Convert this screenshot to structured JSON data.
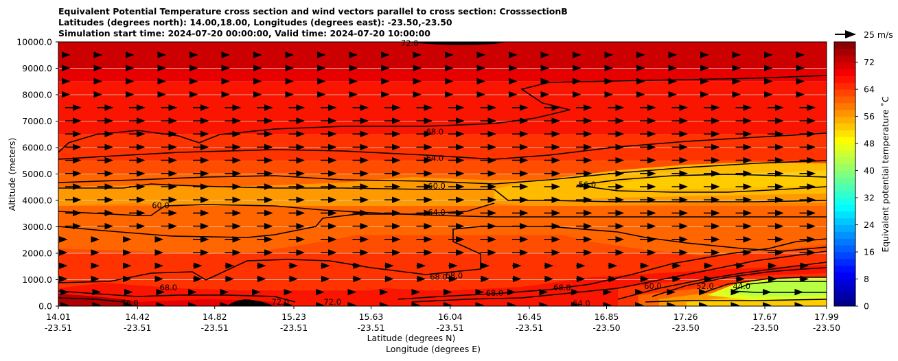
{
  "title_lines": [
    "Equivalent Potential Temperature cross section and wind vectors parallel to cross section: CrosssectionB",
    "Latitudes (degrees north): 14.00,18.00, Longitudes (degrees east): -23.50,-23.50",
    "Simulation start time: 2024-07-20 00:00:00, Valid time: 2024-07-20 10:00:00"
  ],
  "chart_data": {
    "type": "heatmap",
    "subtype": "filled contour cross section with wind vectors",
    "title": "Equivalent Potential Temperature cross section and wind vectors parallel to cross section: CrosssectionB",
    "ylabel": "Altitude (meters)",
    "xlabel_lines": [
      "Latitude (degrees N)",
      "Longitude (degrees E)"
    ],
    "ylim": [
      0,
      10000
    ],
    "yticks": [
      "0.0",
      "1000.0",
      "2000.0",
      "3000.0",
      "4000.0",
      "5000.0",
      "6000.0",
      "7000.0",
      "8000.0",
      "9000.0",
      "10000.0"
    ],
    "xticks": [
      {
        "lat": "14.01",
        "lon": "-23.51"
      },
      {
        "lat": "14.42",
        "lon": "-23.51"
      },
      {
        "lat": "14.82",
        "lon": "-23.51"
      },
      {
        "lat": "15.23",
        "lon": "-23.51"
      },
      {
        "lat": "15.63",
        "lon": "-23.51"
      },
      {
        "lat": "16.04",
        "lon": "-23.51"
      },
      {
        "lat": "16.45",
        "lon": "-23.51"
      },
      {
        "lat": "16.85",
        "lon": "-23.50"
      },
      {
        "lat": "17.26",
        "lon": "-23.50"
      },
      {
        "lat": "17.67",
        "lon": "-23.50"
      },
      {
        "lat": "17.99",
        "lon": "-23.50"
      }
    ],
    "colorbar": {
      "label": "Equivalent potential temperature ˚C",
      "range": [
        0,
        78
      ],
      "ticks": [
        "0",
        "8",
        "16",
        "24",
        "32",
        "40",
        "48",
        "56",
        "64",
        "72"
      ],
      "colormap": "jet"
    },
    "wind_key_label": "25 m/s",
    "grid": "horizontal lines at y ticks",
    "bands": [
      {
        "value": 76,
        "y_top": 10000,
        "y_bottom": 9750
      },
      {
        "value": 74,
        "y_top": 9750,
        "y_bottom": 9000
      },
      {
        "value": 72,
        "y_top": 9000,
        "y_bottom": 8500
      },
      {
        "value": 70,
        "y_top": 8500,
        "y_bottom": 6500
      },
      {
        "value": 68,
        "y_top": 6500,
        "y_bottom": 5500
      },
      {
        "value": 66,
        "y_top": 5500,
        "y_bottom": 5000
      },
      {
        "value": 64,
        "y_top": 5000,
        "y_bottom": 4200
      },
      {
        "value": 62,
        "y_top": 4200,
        "y_bottom": 3400
      },
      {
        "value": 64,
        "y_top": 3400,
        "y_bottom": 2700
      },
      {
        "value": 66,
        "y_top": 2700,
        "y_bottom": 2000
      },
      {
        "value": 68,
        "y_top": 2000,
        "y_bottom": 600
      },
      {
        "value": 70,
        "y_top": 600,
        "y_bottom": 0
      }
    ],
    "contour_labels": [
      {
        "text": "72.0",
        "lat": 15.83,
        "alt": 9950
      },
      {
        "text": "68.0",
        "lat": 15.96,
        "alt": 6600
      },
      {
        "text": "64.0",
        "lat": 15.96,
        "alt": 5600
      },
      {
        "text": "60.0",
        "lat": 15.97,
        "alt": 4550
      },
      {
        "text": "56.0",
        "lat": 16.75,
        "alt": 4600
      },
      {
        "text": "60.0",
        "lat": 14.54,
        "alt": 3800
      },
      {
        "text": "64.0",
        "lat": 15.97,
        "alt": 3550
      },
      {
        "text": "68.0",
        "lat": 14.58,
        "alt": 700
      },
      {
        "text": "68.0",
        "lat": 15.98,
        "alt": 1100
      },
      {
        "text": "68.0",
        "lat": 16.06,
        "alt": 1150
      },
      {
        "text": "68.0",
        "lat": 16.27,
        "alt": 500
      },
      {
        "text": "68.0",
        "lat": 16.62,
        "alt": 700
      },
      {
        "text": "64.0",
        "lat": 16.72,
        "alt": 100
      },
      {
        "text": "60.0",
        "lat": 17.09,
        "alt": 750
      },
      {
        "text": "52.0",
        "lat": 17.36,
        "alt": 750
      },
      {
        "text": "44.0",
        "lat": 17.55,
        "alt": 750
      },
      {
        "text": "76.0",
        "lat": 14.38,
        "alt": 120
      },
      {
        "text": "72.0",
        "lat": 15.16,
        "alt": 150
      },
      {
        "text": "72.0",
        "lat": 15.43,
        "alt": 150
      }
    ]
  },
  "colors": {
    "band_76": "#b00000",
    "band_74": "#cc0000",
    "band_72": "#e60000",
    "band_70": "#fa1500",
    "band_68": "#ff3300",
    "band_66": "#ff4d00",
    "band_64": "#ff6600",
    "band_62": "#ff8000",
    "band_60": "#ff9900",
    "band_56": "#ffbb00",
    "band_52": "#ffcc00",
    "band_48": "#ddff22",
    "band_44": "#b8ff44",
    "dark_cell": "#000000"
  }
}
